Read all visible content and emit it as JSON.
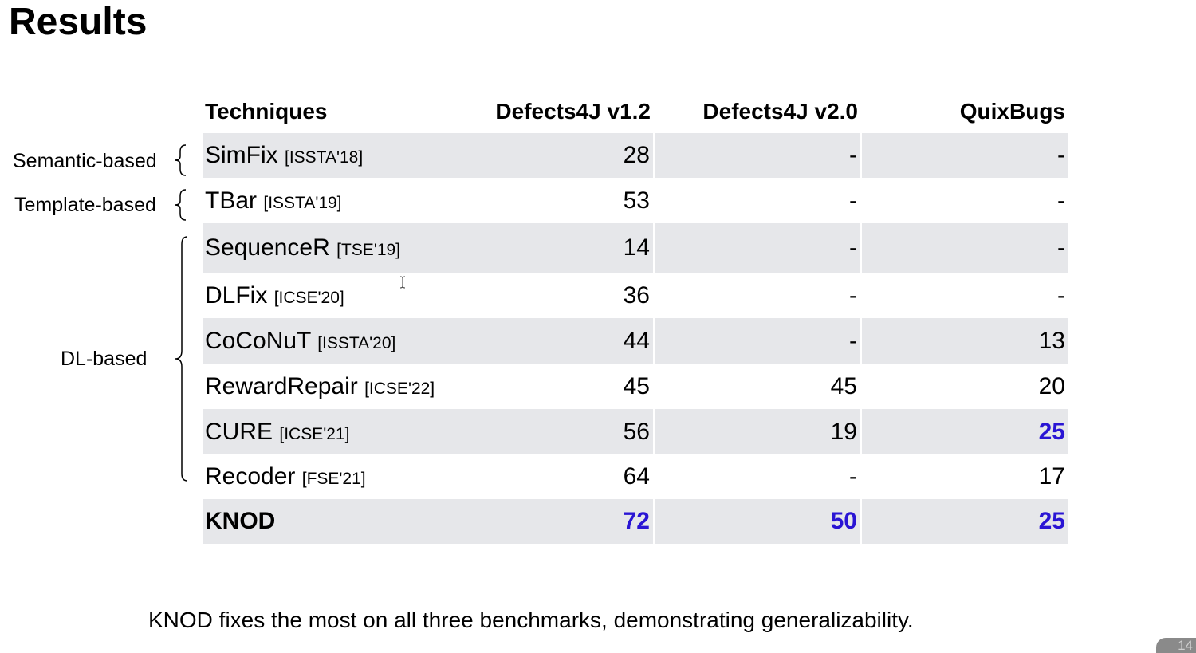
{
  "slide": {
    "title": "Results",
    "page_number": "14",
    "footer_note": "KNOD fixes the most on all three benchmarks, demonstrating generalizability."
  },
  "groups": [
    {
      "label": "Semantic-based"
    },
    {
      "label": "Template-based"
    },
    {
      "label": "DL-based"
    }
  ],
  "table": {
    "headers": [
      "Techniques",
      "Defects4J v1.2",
      "Defects4J v2.0",
      "QuixBugs"
    ],
    "rows": [
      {
        "name": "SimFix",
        "venue": "[ISSTA'18]",
        "d4j12": "28",
        "d4j20": "-",
        "quix": "-"
      },
      {
        "name": "TBar",
        "venue": "[ISSTA'19]",
        "d4j12": "53",
        "d4j20": "-",
        "quix": "-"
      },
      {
        "name": "SequenceR",
        "venue": "[TSE'19]",
        "d4j12": "14",
        "d4j20": "-",
        "quix": "-"
      },
      {
        "name": "DLFix",
        "venue": "[ICSE'20]",
        "d4j12": "36",
        "d4j20": "-",
        "quix": "-"
      },
      {
        "name": "CoCoNuT",
        "venue": "[ISSTA'20]",
        "d4j12": "44",
        "d4j20": "-",
        "quix": "13"
      },
      {
        "name": "RewardRepair",
        "venue": "[ICSE'22]",
        "d4j12": "45",
        "d4j20": "45",
        "quix": "20"
      },
      {
        "name": "CURE",
        "venue": "[ICSE'21]",
        "d4j12": "56",
        "d4j20": "19",
        "quix": "25"
      },
      {
        "name": "Recoder",
        "venue": "[FSE'21]",
        "d4j12": "64",
        "d4j20": "-",
        "quix": "17"
      },
      {
        "name": "KNOD",
        "venue": "",
        "d4j12": "72",
        "d4j20": "50",
        "quix": "25"
      }
    ]
  },
  "colors": {
    "best_value": "#2a15d4",
    "row_shade": "#e6e7ea"
  },
  "icons": {
    "cursor": "text-cursor-icon"
  }
}
